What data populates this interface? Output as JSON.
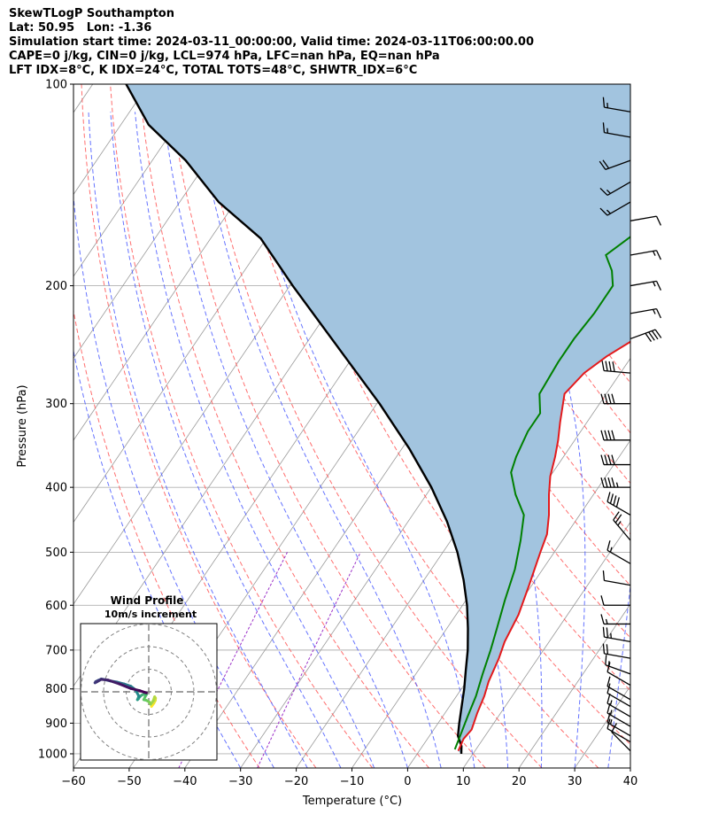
{
  "header": {
    "lines": [
      "SkewTLogP Southampton",
      "Lat: 50.95   Lon: -1.36",
      "Simulation start time: 2024-03-11_00:00:00, Valid time: 2024-03-11T06:00:00.00",
      "CAPE=0 j/kg, CIN=0 j/kg, LCL=974 hPa, LFC=nan hPa, EQ=nan hPa",
      "LFT IDX=8°C, K IDX=24°C, TOTAL TOTS=48°C, SHWTR_IDX=6°C"
    ]
  },
  "chart_data": {
    "type": "skewt-logp",
    "xlabel": "Temperature (°C)",
    "ylabel": "Pressure (hPa)",
    "xlim": [
      -60,
      40
    ],
    "ylim": [
      1050,
      100
    ],
    "x_ticks": [
      -60,
      -50,
      -40,
      -30,
      -20,
      -10,
      0,
      10,
      20,
      30,
      40
    ],
    "x_tick_labels": [
      "−60",
      "−50",
      "−40",
      "−30",
      "−20",
      "−10",
      "0",
      "10",
      "20",
      "30",
      "40"
    ],
    "y_ticks": [
      1000,
      900,
      800,
      700,
      600,
      500,
      400,
      300,
      200,
      100
    ],
    "y_tick_labels": [
      "1000",
      "900",
      "800",
      "700",
      "600",
      "500",
      "400",
      "300",
      "200",
      "100"
    ],
    "grid": true,
    "colors": {
      "temperature": "#e31a1c",
      "dewpoint": "#008000",
      "parcel": "#000000",
      "shading": "#a2c4df",
      "dry_adiabats": "#ff5555",
      "moist_adiabats": "#4a5aff",
      "isotherms": "#999999",
      "mixing_ratio": "#9b30c8"
    },
    "series": [
      {
        "name": "Temperature",
        "points": [
          [
            7.0,
            990
          ],
          [
            6.5,
            950
          ],
          [
            6.8,
            920
          ],
          [
            5.8,
            870
          ],
          [
            5.0,
            820
          ],
          [
            4.0,
            780
          ],
          [
            3.0,
            720
          ],
          [
            2.0,
            680
          ],
          [
            1.2,
            620
          ],
          [
            -0.5,
            560
          ],
          [
            -2.5,
            500
          ],
          [
            -3.5,
            470
          ],
          [
            -5.5,
            440
          ],
          [
            -8.0,
            410
          ],
          [
            -10.0,
            385
          ],
          [
            -11.5,
            360
          ],
          [
            -13.0,
            340
          ],
          [
            -14.8,
            320
          ],
          [
            -17.5,
            290
          ],
          [
            -16.5,
            270
          ],
          [
            -14.5,
            255
          ],
          [
            -11.5,
            240
          ],
          [
            -8.0,
            220
          ],
          [
            -5.0,
            200
          ],
          [
            -1.0,
            180
          ],
          [
            4.0,
            160
          ],
          [
            6.5,
            150
          ],
          [
            9.0,
            140
          ],
          [
            11.5,
            130
          ],
          [
            13.5,
            120
          ],
          [
            13.5,
            110
          ],
          [
            12.2,
            100
          ]
        ]
      },
      {
        "name": "Dewpoint",
        "points": [
          [
            6.2,
            985
          ],
          [
            5.5,
            940
          ],
          [
            4.5,
            880
          ],
          [
            3.5,
            820
          ],
          [
            2.0,
            760
          ],
          [
            0.5,
            700
          ],
          [
            -1.0,
            650
          ],
          [
            -3.0,
            590
          ],
          [
            -5.0,
            530
          ],
          [
            -7.5,
            480
          ],
          [
            -10.0,
            440
          ],
          [
            -14.0,
            410
          ],
          [
            -17.5,
            380
          ],
          [
            -18.5,
            360
          ],
          [
            -19.5,
            330
          ],
          [
            -19.5,
            310
          ],
          [
            -22.0,
            290
          ],
          [
            -22.5,
            260
          ],
          [
            -22.5,
            240
          ],
          [
            -22.0,
            220
          ],
          [
            -22.0,
            200
          ],
          [
            -24.0,
            190
          ],
          [
            -27.0,
            180
          ],
          [
            -24.0,
            165
          ],
          [
            -21.0,
            150
          ],
          [
            -16.0,
            135
          ],
          [
            -11.5,
            120
          ],
          [
            -7.5,
            110
          ],
          [
            -3.5,
            100
          ]
        ]
      },
      {
        "name": "Parcel",
        "points": [
          [
            7.9,
            1000
          ],
          [
            7.0,
            974
          ],
          [
            5.1,
            940
          ],
          [
            3.8,
            900
          ],
          [
            2.2,
            850
          ],
          [
            0.5,
            800
          ],
          [
            -1.5,
            750
          ],
          [
            -3.6,
            700
          ],
          [
            -6.2,
            650
          ],
          [
            -9.2,
            600
          ],
          [
            -12.9,
            550
          ],
          [
            -17.4,
            500
          ],
          [
            -23.0,
            450
          ],
          [
            -30.0,
            400
          ],
          [
            -38.7,
            350
          ],
          [
            -49.5,
            300
          ],
          [
            -63.0,
            250
          ],
          [
            -79.5,
            200
          ],
          [
            -91.0,
            170
          ],
          [
            -103.0,
            150
          ],
          [
            -114.0,
            130
          ],
          [
            -125.0,
            115
          ],
          [
            -134.0,
            100
          ]
        ]
      }
    ],
    "wind_barbs": {
      "color": "#000000",
      "pressures": [
        990,
        960,
        940,
        910,
        880,
        850,
        830,
        790,
        760,
        720,
        680,
        640,
        600,
        560,
        520,
        480,
        440,
        400,
        370,
        340,
        300,
        270,
        240,
        220,
        200,
        180,
        160,
        150,
        140,
        130,
        120,
        110
      ],
      "speed_kt": [
        10,
        12,
        15,
        15,
        15,
        10,
        10,
        10,
        15,
        20,
        25,
        15,
        10,
        10,
        15,
        25,
        40,
        45,
        40,
        40,
        40,
        40,
        40,
        15,
        15,
        15,
        10,
        15,
        15,
        20,
        15,
        15
      ],
      "direction_deg": [
        315,
        300,
        300,
        300,
        300,
        300,
        300,
        300,
        290,
        280,
        280,
        270,
        270,
        280,
        300,
        320,
        300,
        270,
        270,
        270,
        270,
        275,
        70,
        80,
        80,
        80,
        80,
        240,
        240,
        250,
        280,
        280
      ]
    },
    "hodograph": {
      "title": "Wind Profile",
      "subtitle": "10m/s increment",
      "rings_ms": [
        10,
        20,
        30
      ],
      "u": [
        1.2,
        2.3,
        2.9,
        3.0,
        2.6,
        2.0,
        0.8,
        0.2,
        -1.0,
        -2.2,
        -1.5,
        -1.0,
        -2.0,
        -3.2,
        -4.2,
        -4.5,
        -5.0,
        -4.4,
        -4.2,
        -6.0,
        -8.0,
        -11.0,
        -14.0,
        -17.0,
        -19.0,
        -21.0,
        -22.5,
        -23.5,
        -23.8,
        -23.0,
        -21.0,
        -18.0,
        -13.0,
        -8.0,
        -4.0,
        -1.0
      ],
      "v": [
        -6.5,
        -5.0,
        -3.8,
        -2.8,
        -2.2,
        -4.0,
        -5.5,
        -4.5,
        -3.8,
        -3.5,
        -2.0,
        -1.2,
        -1.0,
        -1.5,
        -2.4,
        -3.0,
        -3.5,
        -2.0,
        -2.2,
        1.0,
        2.5,
        3.5,
        4.3,
        4.8,
        5.3,
        5.7,
        5.0,
        4.5,
        4.0,
        4.4,
        5.5,
        5.2,
        3.5,
        1.5,
        0.5,
        -0.5
      ]
    }
  }
}
